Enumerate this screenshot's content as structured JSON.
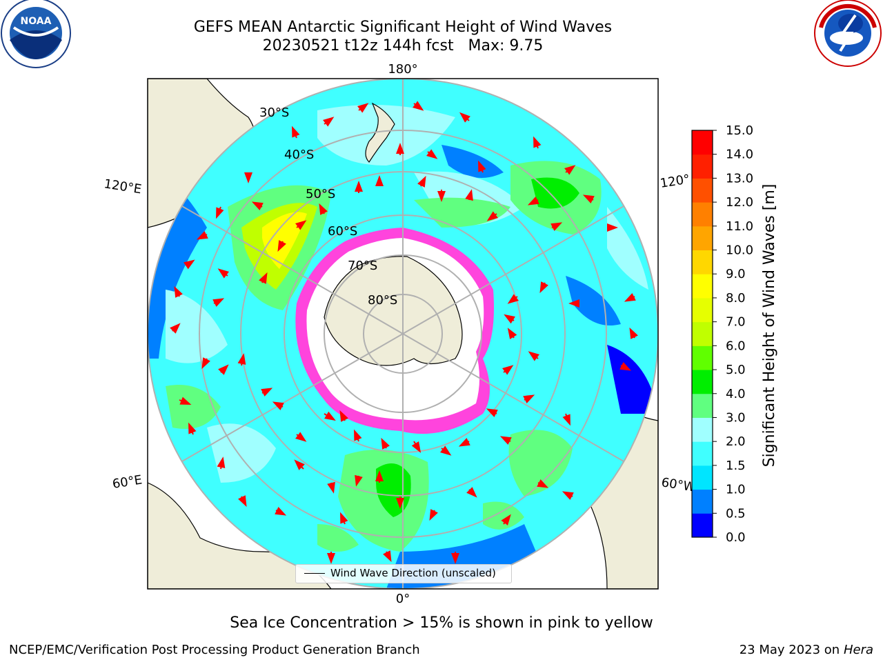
{
  "header": {
    "title": "GEFS MEAN Antarctic Significant Height of Wind Waves",
    "subtitle": "20230521 t12z 144h fcst   Max: 9.75"
  },
  "map": {
    "longitude_labels": {
      "top": "180°",
      "bottom": "0°",
      "upper_left": "120°E",
      "upper_right": "120°",
      "lower_left": "60°E",
      "lower_right": "60°W"
    },
    "latitude_labels": [
      "30°S",
      "40°S",
      "50°S",
      "60°S",
      "70°S",
      "80°S"
    ],
    "legend_label": "Wind Wave Direction (unscaled)",
    "land_color": "#efedd9",
    "ice_color": "#ff44dd"
  },
  "colorbar": {
    "label": "Significant Height of Wind Waves [m]",
    "ticks": [
      "0.0",
      "0.5",
      "1.0",
      "1.5",
      "2.0",
      "3.0",
      "4.0",
      "5.0",
      "6.0",
      "7.0",
      "8.0",
      "9.0",
      "10.0",
      "11.0",
      "12.0",
      "13.0",
      "14.0",
      "15.0"
    ],
    "colors": [
      "#0000ff",
      "#0080ff",
      "#00e5ff",
      "#40ffff",
      "#a0ffff",
      "#60ff80",
      "#00ee00",
      "#60ff00",
      "#c0ff00",
      "#e6ff00",
      "#ffff00",
      "#ffd700",
      "#ffa500",
      "#ff8000",
      "#ff5000",
      "#ff2000",
      "#ff0000"
    ]
  },
  "footer": {
    "caption": "Sea Ice Concentration > 15% is shown in pink to yellow",
    "credit": "NCEP/EMC/Verification Post Processing Product Generation Branch",
    "date": "23 May 2023 on",
    "host": "Hera"
  },
  "logos": {
    "left": "NOAA",
    "right": "NATIONAL WEATHER SERVICE"
  }
}
